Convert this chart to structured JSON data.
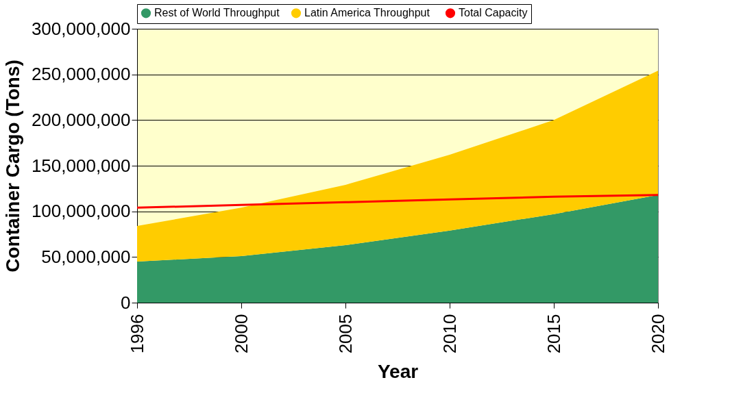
{
  "chart_data": {
    "type": "area",
    "stacked": true,
    "xlabel": "Year",
    "ylabel": "Container Cargo (Tons)",
    "categories": [
      "1996",
      "2000",
      "2005",
      "2010",
      "2015",
      "2020"
    ],
    "series": [
      {
        "name": "Rest of World Throughput",
        "color": "#339966",
        "values": [
          45000000,
          51000000,
          63000000,
          79000000,
          97000000,
          118000000
        ]
      },
      {
        "name": "Latin  America Throughput",
        "color": "#ffcc00",
        "values": [
          39000000,
          53000000,
          66000000,
          83000000,
          103000000,
          136000000
        ]
      },
      {
        "name": "Total Capacity",
        "type": "line",
        "color": "#ff0000",
        "values": [
          104000000,
          107000000,
          110000000,
          113000000,
          116000000,
          118000000
        ]
      }
    ],
    "ylim": [
      0,
      300000000
    ],
    "yticks": [
      0,
      {
        "value": 50000000,
        "label": "50,000,000"
      },
      {
        "value": 100000000,
        "label": "100,000,000"
      },
      {
        "value": 150000000,
        "label": "150,000,000"
      },
      {
        "value": 200000000,
        "label": "200,000,000"
      },
      {
        "value": 250000000,
        "label": "250,000,000"
      },
      {
        "value": 300000000,
        "label": "300,000,000"
      }
    ],
    "grid": "y",
    "legend": "top"
  }
}
